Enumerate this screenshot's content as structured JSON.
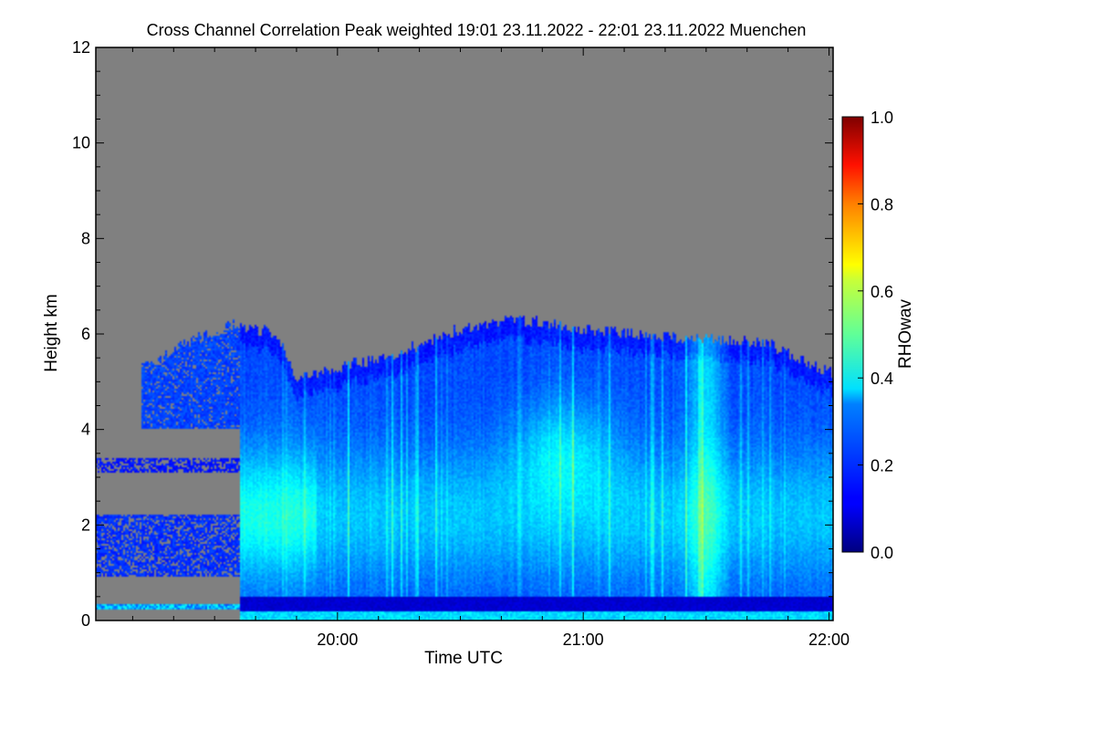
{
  "chart_data": {
    "type": "heatmap",
    "title": "Cross Channel Correlation Peak weighted   19:01 23.11.2022 - 22:01 23.11.2022 Muenchen",
    "xlabel": "Time UTC",
    "ylabel": "Height km",
    "xlim": [
      "19:01",
      "22:01"
    ],
    "ylim": [
      0,
      12
    ],
    "x_ticks": [
      "20:00",
      "21:00",
      "22:00"
    ],
    "y_ticks": [
      "0",
      "2",
      "4",
      "6",
      "8",
      "10",
      "12"
    ],
    "colorbar": {
      "label": "RHOwav",
      "range": [
        0.0,
        1.0
      ],
      "ticks": [
        "0.0",
        "0.2",
        "0.4",
        "0.6",
        "0.8",
        "1.0"
      ],
      "colormap": "jet"
    },
    "background_color": "#808080",
    "cloud_top_km": [
      [
        "19:15",
        5.4
      ],
      [
        "19:25",
        5.9
      ],
      [
        "19:35",
        6.2
      ],
      [
        "19:45",
        6.0
      ],
      [
        "19:50",
        5.1
      ],
      [
        "20:00",
        5.3
      ],
      [
        "20:15",
        5.6
      ],
      [
        "20:30",
        6.1
      ],
      [
        "20:45",
        6.3
      ],
      [
        "21:00",
        6.1
      ],
      [
        "21:15",
        6.0
      ],
      [
        "21:30",
        5.9
      ],
      [
        "21:45",
        5.8
      ],
      [
        "22:00",
        5.2
      ]
    ],
    "low_layer_km": [
      0.2,
      0.5
    ],
    "typical_value": 0.2,
    "peak_value": 0.4
  }
}
